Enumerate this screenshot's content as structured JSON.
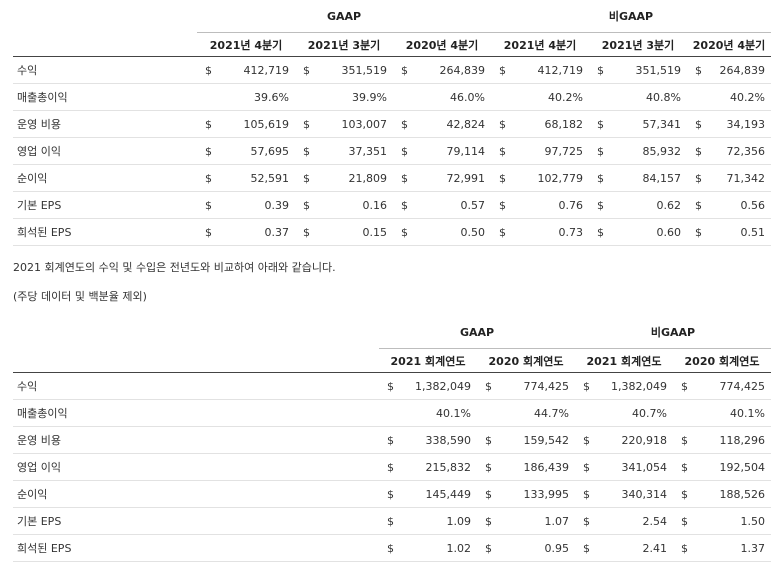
{
  "quarterly": {
    "group_headers": [
      "GAAP",
      "비GAAP"
    ],
    "columns": [
      "2021년 4분기",
      "2021년 3분기",
      "2020년 4분기",
      "2021년 4분기",
      "2021년 3분기",
      "2020년 4분기"
    ],
    "rows": [
      {
        "label": "수익",
        "cells": [
          [
            "$",
            "412,719"
          ],
          [
            "$",
            "351,519"
          ],
          [
            "$",
            "264,839"
          ],
          [
            "$",
            "412,719"
          ],
          [
            "$",
            "351,519"
          ],
          [
            "$",
            "264,839"
          ]
        ]
      },
      {
        "label": "매출총이익",
        "cells": [
          [
            "",
            "39.6%"
          ],
          [
            "",
            "39.9%"
          ],
          [
            "",
            "46.0%"
          ],
          [
            "",
            "40.2%"
          ],
          [
            "",
            "40.8%"
          ],
          [
            "",
            "40.2%"
          ]
        ]
      },
      {
        "label": "운영 비용",
        "cells": [
          [
            "$",
            "105,619"
          ],
          [
            "$",
            "103,007"
          ],
          [
            "$",
            "42,824"
          ],
          [
            "$",
            "68,182"
          ],
          [
            "$",
            "57,341"
          ],
          [
            "$",
            "34,193"
          ]
        ]
      },
      {
        "label": "영업 이익",
        "cells": [
          [
            "$",
            "57,695"
          ],
          [
            "$",
            "37,351"
          ],
          [
            "$",
            "79,114"
          ],
          [
            "$",
            "97,725"
          ],
          [
            "$",
            "85,932"
          ],
          [
            "$",
            "72,356"
          ]
        ]
      },
      {
        "label": "순이익",
        "cells": [
          [
            "$",
            "52,591"
          ],
          [
            "$",
            "21,809"
          ],
          [
            "$",
            "72,991"
          ],
          [
            "$",
            "102,779"
          ],
          [
            "$",
            "84,157"
          ],
          [
            "$",
            "71,342"
          ]
        ]
      },
      {
        "label": "기본 EPS",
        "cells": [
          [
            "$",
            "0.39"
          ],
          [
            "$",
            "0.16"
          ],
          [
            "$",
            "0.57"
          ],
          [
            "$",
            "0.76"
          ],
          [
            "$",
            "0.62"
          ],
          [
            "$",
            "0.56"
          ]
        ]
      },
      {
        "label": "희석된 EPS",
        "cells": [
          [
            "$",
            "0.37"
          ],
          [
            "$",
            "0.15"
          ],
          [
            "$",
            "0.50"
          ],
          [
            "$",
            "0.73"
          ],
          [
            "$",
            "0.60"
          ],
          [
            "$",
            "0.51"
          ]
        ]
      }
    ]
  },
  "paragraph1": "2021 회계연도의 수익 및 수입은 전년도와 비교하여 아래와 같습니다.",
  "paragraph2": "(주당 데이터 및 백분율 제외)",
  "annual": {
    "group_headers": [
      "GAAP",
      "비GAAP"
    ],
    "columns": [
      "2021 회계연도",
      "2020 회계연도",
      "2021 회계연도",
      "2020 회계연도"
    ],
    "rows": [
      {
        "label": "수익",
        "cells": [
          [
            "$",
            "1,382,049"
          ],
          [
            "$",
            "774,425"
          ],
          [
            "$",
            "1,382,049"
          ],
          [
            "$",
            "774,425"
          ]
        ]
      },
      {
        "label": "매출총이익",
        "cells": [
          [
            "",
            "40.1%"
          ],
          [
            "",
            "44.7%"
          ],
          [
            "",
            "40.7%"
          ],
          [
            "",
            "40.1%"
          ]
        ]
      },
      {
        "label": "운영 비용",
        "cells": [
          [
            "$",
            "338,590"
          ],
          [
            "$",
            "159,542"
          ],
          [
            "$",
            "220,918"
          ],
          [
            "$",
            "118,296"
          ]
        ]
      },
      {
        "label": "영업 이익",
        "cells": [
          [
            "$",
            "215,832"
          ],
          [
            "$",
            "186,439"
          ],
          [
            "$",
            "341,054"
          ],
          [
            "$",
            "192,504"
          ]
        ]
      },
      {
        "label": "순이익",
        "cells": [
          [
            "$",
            "145,449"
          ],
          [
            "$",
            "133,995"
          ],
          [
            "$",
            "340,314"
          ],
          [
            "$",
            "188,526"
          ]
        ]
      },
      {
        "label": "기본 EPS",
        "cells": [
          [
            "$",
            "1.09"
          ],
          [
            "$",
            "1.07"
          ],
          [
            "$",
            "2.54"
          ],
          [
            "$",
            "1.50"
          ]
        ]
      },
      {
        "label": "희석된 EPS",
        "cells": [
          [
            "$",
            "1.02"
          ],
          [
            "$",
            "0.95"
          ],
          [
            "$",
            "2.41"
          ],
          [
            "$",
            "1.37"
          ]
        ]
      }
    ]
  }
}
